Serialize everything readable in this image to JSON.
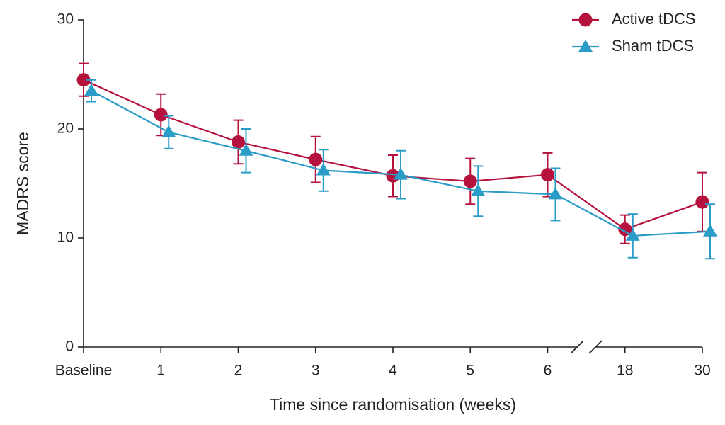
{
  "chart_data": {
    "type": "line",
    "x_label": "Time since randomisation (weeks)",
    "y_label": "MADRS score",
    "categories": [
      "Baseline",
      "1",
      "2",
      "3",
      "4",
      "5",
      "6",
      "18",
      "30"
    ],
    "ylim": [
      0,
      30
    ],
    "yticks": [
      0,
      10,
      20,
      30
    ],
    "legend": "top-right",
    "series": [
      {
        "name": "Active tDCS",
        "color": "#b5123e",
        "marker": "circle",
        "values": [
          24.5,
          21.3,
          18.8,
          17.2,
          15.7,
          15.2,
          15.8,
          10.8,
          13.3
        ],
        "errors": [
          1.5,
          1.9,
          2.0,
          2.1,
          1.9,
          2.1,
          2.0,
          1.3,
          2.7
        ]
      },
      {
        "name": "Sham tDCS",
        "color": "#2a9cc8",
        "marker": "triangle",
        "values": [
          23.5,
          19.7,
          18.0,
          16.2,
          15.8,
          14.3,
          14.0,
          10.2,
          10.6
        ],
        "errors": [
          1.0,
          1.5,
          2.0,
          1.9,
          2.2,
          2.3,
          2.4,
          2.0,
          2.5
        ]
      }
    ]
  }
}
